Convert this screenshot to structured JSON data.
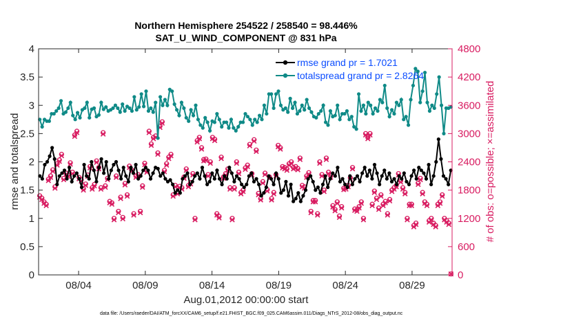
{
  "title_line1": "Northern Hemisphere 254522 / 258540 = 98.446%",
  "title_line2": "SAT_U_WIND_COMPONENT @ 831 hPa",
  "footer": "data file: /Users/raeder/DAI/ATM_forcXX/CAM6_setup/f.e21.FHIST_BGC.f09_025.CAM6assim.011/Diags_NTrS_2012-08/obs_diag_output.nc",
  "colors": {
    "rmse": "#000000",
    "spread": "#0f8a87",
    "obs": "#d81b60",
    "legend_text": "#0a4cff"
  },
  "chart_data": {
    "type": "line",
    "xlabel": "Aug.01,2012 00:00:00 start",
    "ylabel": "rmse and totalspread",
    "y2label": "# of obs: o=possible; ×=assimilated",
    "xlim": [
      0.5,
      31.5
    ],
    "ylim": [
      0,
      4
    ],
    "y2lim": [
      0,
      4800
    ],
    "x_ticks": [
      3.5,
      8.5,
      13.5,
      18.5,
      23.5,
      28.5
    ],
    "x_tick_labels": [
      "08/04",
      "08/09",
      "08/14",
      "08/19",
      "08/24",
      "08/29"
    ],
    "y_ticks": [
      0,
      0.5,
      1,
      1.5,
      2,
      2.5,
      3,
      3.5,
      4
    ],
    "y_tick_labels": [
      "0",
      "0.5",
      "1",
      "1.5",
      "2",
      "2.5",
      "3",
      "3.5",
      "4"
    ],
    "y2_ticks": [
      0,
      600,
      1200,
      1800,
      2400,
      3000,
      3600,
      4200,
      4800
    ],
    "y2_tick_labels": [
      "0",
      "600",
      "1200",
      "1800",
      "2400",
      "3000",
      "3600",
      "4200",
      "4800"
    ],
    "legend_placement": "top-right",
    "series": [
      {
        "name": "rmse grand pr = 1.7021",
        "axis": "left",
        "values": [
          1.75,
          1.7,
          1.95,
          2.0,
          2.1,
          2.25,
          2.05,
          1.6,
          1.75,
          1.8,
          1.85,
          1.7,
          1.9,
          1.65,
          1.75,
          1.8,
          1.7,
          1.55,
          1.95,
          1.75,
          1.7,
          2.0,
          1.85,
          1.65,
          1.9,
          2.05,
          1.8,
          2.0,
          1.7,
          1.85,
          1.95,
          2.0,
          1.85,
          1.7,
          1.9,
          1.75,
          1.65,
          1.9,
          1.8,
          1.95,
          1.7,
          1.75,
          1.85,
          1.9,
          1.85,
          1.7,
          1.8,
          1.9,
          1.88,
          1.75,
          1.8,
          1.7,
          1.65,
          1.68,
          1.6,
          1.45,
          1.5,
          1.45,
          1.7,
          1.75,
          1.8,
          1.6,
          1.65,
          1.75,
          1.8,
          1.7,
          1.9,
          1.75,
          1.6,
          1.65,
          1.8,
          1.7,
          1.85,
          1.7,
          1.6,
          1.75,
          1.7,
          1.9,
          1.8,
          1.65,
          1.75,
          1.7,
          1.6,
          1.55,
          1.6,
          1.75,
          1.8,
          1.65,
          1.7,
          1.6,
          1.4,
          1.45,
          1.55,
          1.75,
          1.7,
          1.6,
          1.8,
          1.7,
          1.45,
          1.5,
          1.65,
          1.4,
          1.6,
          1.3,
          1.35,
          1.45,
          1.3,
          1.4,
          1.5,
          1.7,
          1.75,
          1.65,
          1.5,
          1.55,
          1.45,
          1.6,
          1.75,
          1.55,
          1.7,
          1.8,
          1.75,
          1.9,
          1.65,
          1.7,
          1.6,
          1.55,
          1.75,
          1.6,
          1.7,
          1.75,
          1.65,
          1.8,
          1.9,
          1.75,
          1.85,
          1.7,
          1.95,
          1.8,
          1.6,
          1.75,
          1.85,
          1.7,
          1.8,
          1.65,
          1.7,
          1.6,
          1.75,
          1.7,
          1.8,
          1.65,
          1.6,
          1.75,
          1.85,
          1.7,
          1.9,
          1.85,
          1.8,
          1.7,
          1.95,
          1.6,
          1.75,
          2.0,
          2.4,
          2.05,
          1.75,
          1.7,
          1.6,
          1.85
        ]
      },
      {
        "name": "totalspread grand pr = 2.8264",
        "axis": "left",
        "values": [
          2.75,
          2.62,
          2.75,
          2.72,
          2.72,
          2.85,
          2.85,
          2.9,
          2.95,
          3.08,
          2.85,
          2.88,
          2.95,
          3.05,
          2.82,
          2.75,
          2.87,
          2.78,
          2.92,
          2.95,
          3.05,
          2.78,
          2.93,
          2.95,
          2.8,
          2.83,
          3.05,
          2.93,
          2.97,
          2.9,
          2.92,
          2.95,
          3.0,
          2.95,
          2.88,
          3.02,
          2.9,
          2.98,
          2.95,
          2.9,
          3.15,
          2.92,
          2.97,
          3.2,
          2.98,
          3.25,
          2.9,
          2.95,
          2.88,
          3.05,
          2.42,
          3.15,
          3.0,
          3.1,
          3.0,
          3.28,
          3.25,
          3.02,
          2.92,
          2.82,
          3.05,
          2.95,
          2.78,
          2.72,
          2.92,
          2.82,
          3.0,
          2.75,
          2.65,
          2.6,
          2.78,
          2.7,
          2.55,
          2.72,
          2.7,
          2.85,
          2.75,
          2.62,
          2.7,
          2.7,
          2.6,
          2.75,
          2.6,
          2.55,
          2.62,
          2.7,
          2.7,
          2.85,
          2.8,
          2.75,
          2.65,
          2.75,
          2.7,
          2.82,
          2.75,
          3.0,
          2.85,
          3.2,
          3.2,
          2.95,
          3.2,
          3.25,
          3.0,
          2.92,
          2.95,
          2.88,
          3.12,
          2.95,
          3.05,
          2.85,
          2.9,
          3.0,
          2.92,
          3.1,
          2.95,
          2.88,
          2.8,
          2.78,
          2.85,
          2.9,
          3.0,
          2.7,
          2.65,
          2.9,
          2.8,
          2.82,
          3.0,
          2.75,
          2.85,
          2.85,
          2.9,
          2.75,
          2.8,
          2.62,
          2.58,
          3.2,
          2.9,
          3.0,
          2.85,
          3.05,
          3.0,
          2.85,
          2.95,
          2.9,
          3.1,
          3.05,
          3.35,
          2.95,
          2.8,
          2.92,
          2.85,
          3.05,
          3.0,
          3.1,
          2.75,
          2.8,
          2.65,
          3.1,
          3.35,
          3.65,
          3.6,
          3.05,
          3.25,
          3.58,
          3.05,
          2.9,
          3.0,
          2.95,
          3.2,
          3.5,
          3.0,
          2.5,
          2.95,
          2.95,
          2.97
        ]
      },
      {
        "name": "obs possible",
        "axis": "right",
        "values": [
          1680,
          1630,
          1550,
          1500,
          2030,
          2100,
          2230,
          1870,
          2360,
          2440,
          2560,
          2050,
          2160,
          2120,
          2380,
          2180,
          2970,
          3050,
          2070,
          2020,
          1830,
          1930,
          2120,
          2300,
          1850,
          1920,
          2420,
          2280,
          1850,
          3020,
          1890,
          2050,
          1560,
          1530,
          1200,
          2100,
          1350,
          1650,
          1220,
          1940,
          1700,
          2310,
          2230,
          1300,
          2100,
          2130,
          1350,
          1890,
          2370,
          2210,
          3050,
          2780,
          2920,
          2950,
          2590,
          3160,
          3250,
          2220,
          2360,
          2500,
          2560,
          1700,
          1900,
          1750,
          1880,
          1850,
          2080,
          2250,
          1900,
          1960,
          2150,
          1200,
          2850,
          2920,
          2700,
          2450,
          2460,
          2130,
          2400,
          2920,
          2880,
          1300,
          1240,
          2500,
          2080,
          2150,
          2250,
          1850,
          1200,
          1850,
          2400,
          2180,
          1750,
          1800,
          2270,
          2330,
          2770,
          2150,
          2870,
          2650,
          1730,
          1620,
          1980,
          2160,
          1810,
          2080,
          1620,
          1750,
          2130,
          2750,
          2700,
          2300,
          2280,
          2250,
          2360,
          2400,
          2280,
          2300,
          2260,
          2480,
          1900,
          1870,
          2100,
          2170,
          1350,
          1580,
          1580,
          1300,
          2400,
          2130,
          1800,
          2480,
          2180,
          2100,
          1470,
          1390,
          1550,
          1250,
          1450,
          1840,
          1850,
          1900,
          2060,
          2280,
          1400,
          1380,
          1450,
          1550,
          1200,
          3000,
          2920,
          3000,
          1500,
          1780,
          1630,
          1420,
          1700,
          1500,
          1560,
          1300,
          1600,
          1800,
          1850,
          1900,
          2150,
          2000,
          1850,
          1750,
          1200,
          1500,
          1500,
          1050,
          1100,
          1950,
          2050,
          1750,
          1550,
          1500,
          1150,
          1200,
          1100,
          1050,
          1500,
          1550,
          1700,
          1200,
          1150,
          1100,
          20
        ]
      },
      {
        "name": "obs assimilated",
        "axis": "right",
        "values": [
          1650,
          1600,
          1520,
          1470,
          2000,
          2070,
          2200,
          1840,
          2330,
          2410,
          2530,
          2020,
          2130,
          2090,
          2350,
          2150,
          2940,
          3020,
          2040,
          1990,
          1800,
          1900,
          2090,
          2270,
          1820,
          1890,
          2390,
          2250,
          1820,
          2990,
          1860,
          2020,
          1530,
          1500,
          1170,
          2070,
          1320,
          1620,
          1190,
          1910,
          1670,
          2280,
          2200,
          1270,
          2070,
          2100,
          1320,
          1860,
          2340,
          2180,
          3020,
          2750,
          2890,
          2920,
          2560,
          3130,
          3220,
          2190,
          2330,
          2470,
          2530,
          1670,
          1870,
          1720,
          1850,
          1820,
          2050,
          2220,
          1870,
          1930,
          2120,
          1170,
          2820,
          2890,
          2670,
          2420,
          2430,
          2100,
          2370,
          2890,
          2850,
          1270,
          1210,
          2470,
          2050,
          2120,
          2220,
          1820,
          1170,
          1820,
          2370,
          2150,
          1720,
          1770,
          2240,
          2300,
          2740,
          2120,
          2840,
          2620,
          1700,
          1590,
          1950,
          2130,
          1780,
          2050,
          1590,
          1720,
          2100,
          2720,
          2670,
          2270,
          2250,
          2220,
          2330,
          2370,
          2250,
          2270,
          2230,
          2450,
          1870,
          1840,
          2070,
          2140,
          1320,
          1550,
          1550,
          1270,
          2370,
          2100,
          1770,
          2450,
          2150,
          2070,
          1440,
          1360,
          1520,
          1220,
          1420,
          1810,
          1820,
          1870,
          2030,
          2250,
          1370,
          1350,
          1420,
          1520,
          1170,
          2970,
          2890,
          2970,
          1470,
          1750,
          1600,
          1390,
          1670,
          1470,
          1530,
          1270,
          1570,
          1770,
          1820,
          1870,
          2120,
          1970,
          1820,
          1720,
          1170,
          1470,
          1470,
          1020,
          1070,
          1920,
          2020,
          1720,
          1520,
          1470,
          1120,
          1170,
          1070,
          1020,
          1470,
          1520,
          1670,
          1170,
          1120,
          1070,
          20
        ]
      }
    ]
  }
}
